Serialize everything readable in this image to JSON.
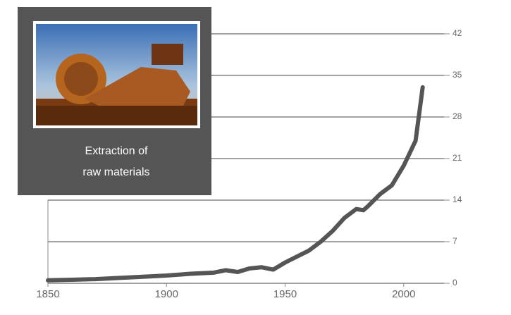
{
  "chart_data": {
    "type": "line",
    "annotation": [
      "Extraction  of",
      "raw materials"
    ],
    "x": [
      1850,
      1860,
      1870,
      1880,
      1890,
      1900,
      1910,
      1920,
      1925,
      1930,
      1935,
      1940,
      1945,
      1950,
      1955,
      1960,
      1965,
      1970,
      1975,
      1980,
      1983,
      1985,
      1990,
      1995,
      2000,
      2005,
      2008
    ],
    "values": [
      0.5,
      0.6,
      0.7,
      0.9,
      1.1,
      1.3,
      1.6,
      1.8,
      2.2,
      1.9,
      2.5,
      2.7,
      2.3,
      3.5,
      4.5,
      5.5,
      7,
      8.8,
      11,
      12.5,
      12.3,
      13,
      15,
      16.5,
      19.8,
      24,
      33
    ],
    "color": "#555555",
    "xlim": [
      1850,
      2017
    ],
    "xticks": [
      1850,
      1900,
      1950,
      2000
    ],
    "ylim": [
      0,
      42
    ],
    "yticks": [
      0,
      7,
      14,
      21,
      28,
      35,
      42
    ],
    "grid": true
  }
}
